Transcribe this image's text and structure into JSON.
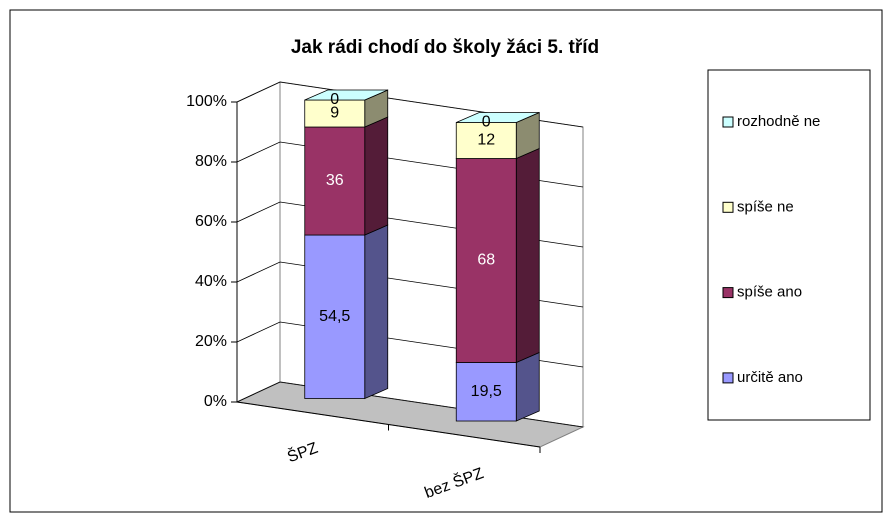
{
  "chart_data": {
    "type": "bar3d_stacked",
    "title": "Jak rádi chodí do školy žáci 5. tříd",
    "categories": [
      "ŠPZ",
      "bez ŠPZ"
    ],
    "series": [
      {
        "name": "určitě ano",
        "color": "#9999ff",
        "values": [
          54.5,
          19.5
        ],
        "value_labels": [
          "54,5",
          "19,5"
        ]
      },
      {
        "name": "spíše ano",
        "color": "#993366",
        "values": [
          36,
          68
        ]
      },
      {
        "name": "spíše ne",
        "color": "#ffffcc",
        "values": [
          9,
          12
        ]
      },
      {
        "name": "rozhodně ne",
        "color": "#ccffff",
        "values": [
          0,
          0
        ]
      }
    ],
    "ylim": [
      0,
      100
    ],
    "yticks": [
      {
        "value": 0,
        "label": "0%"
      },
      {
        "value": 20,
        "label": "20%"
      },
      {
        "value": 40,
        "label": "40%"
      },
      {
        "value": 60,
        "label": "60%"
      },
      {
        "value": 80,
        "label": "80%"
      },
      {
        "value": 100,
        "label": "100%"
      }
    ],
    "grid": true,
    "legend": "right"
  }
}
